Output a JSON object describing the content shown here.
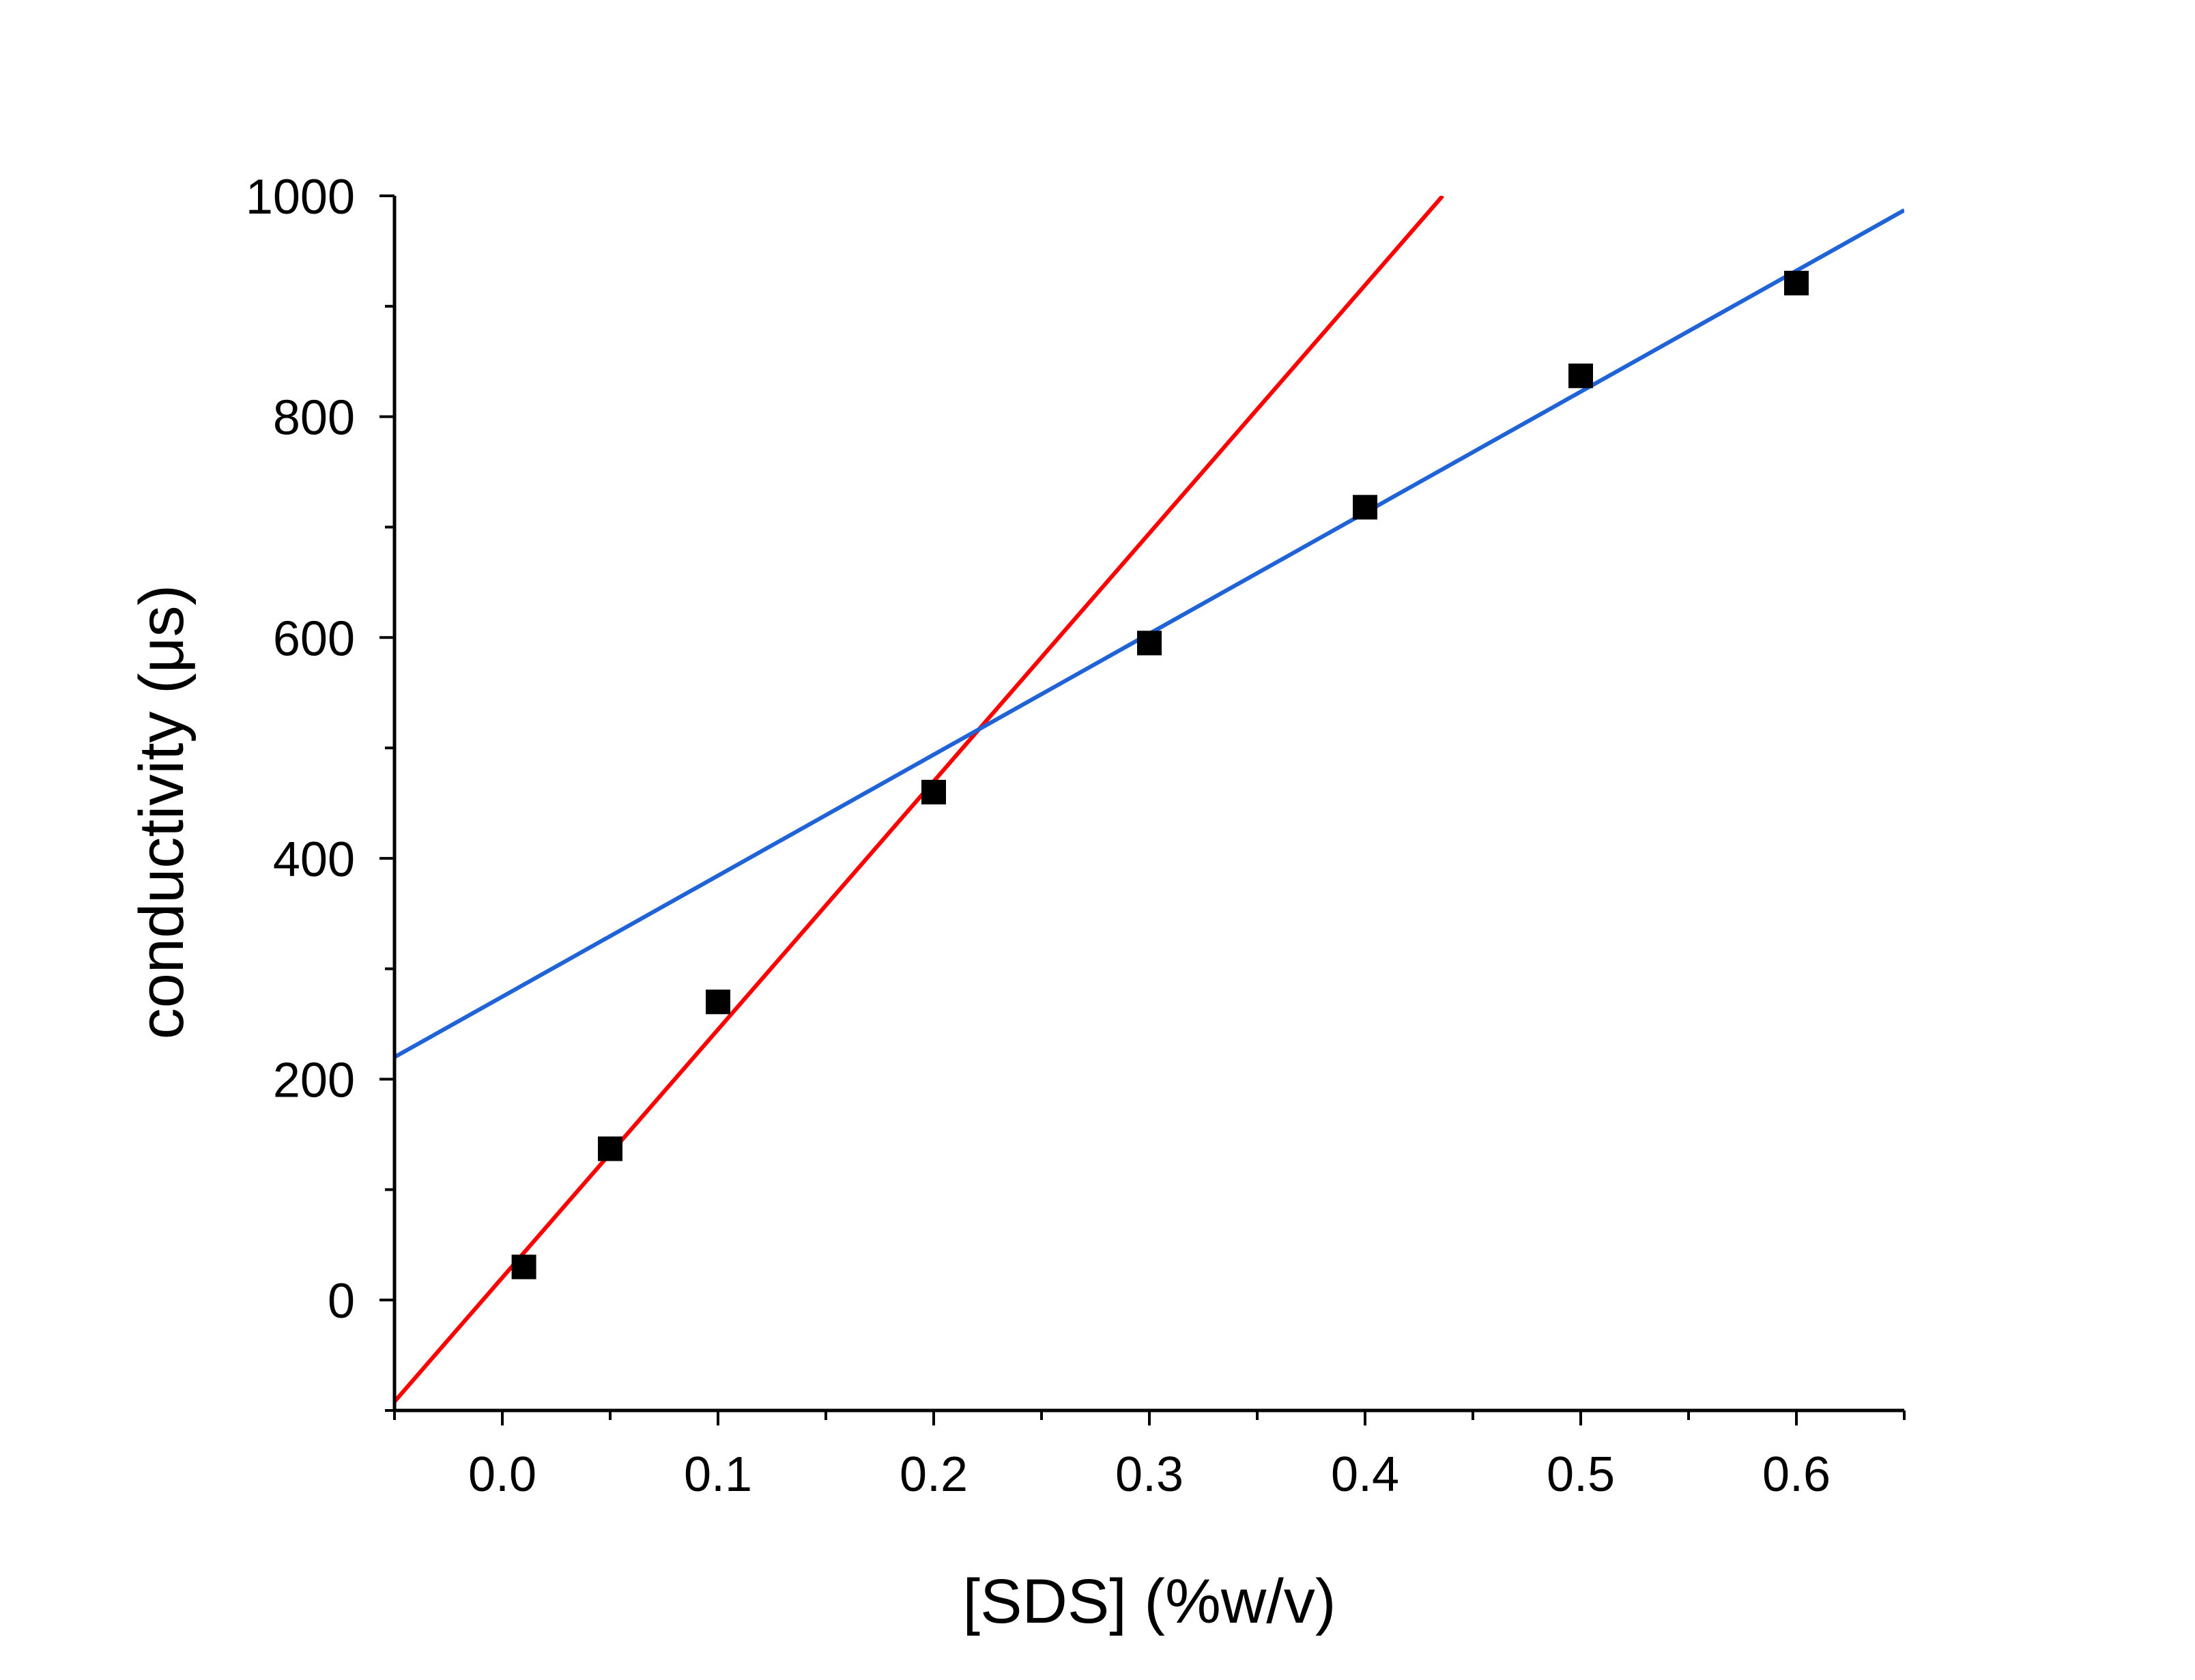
{
  "chart_data": {
    "type": "scatter",
    "title": "",
    "xlabel": "[SDS] (%w/v)",
    "ylabel": "conductivity (μs)",
    "xlim": [
      -0.05,
      0.65
    ],
    "ylim": [
      -100,
      1000
    ],
    "x_ticks": [
      "0.0",
      "0.1",
      "0.2",
      "0.3",
      "0.4",
      "0.5",
      "0.6"
    ],
    "x_tick_values": [
      0.0,
      0.1,
      0.2,
      0.3,
      0.4,
      0.5,
      0.6
    ],
    "y_ticks": [
      "0",
      "200",
      "400",
      "600",
      "800",
      "1000"
    ],
    "y_tick_values": [
      0,
      200,
      400,
      600,
      800,
      1000
    ],
    "grid": false,
    "legend": "none",
    "points": {
      "x": [
        0.01,
        0.05,
        0.1,
        0.2,
        0.3,
        0.4,
        0.5,
        0.6
      ],
      "y": [
        30,
        137,
        270,
        460,
        595,
        718,
        837,
        921
      ],
      "color": "#000000",
      "marker": "square"
    },
    "fit_lines": [
      {
        "x": [
          -0.05,
          0.436
        ],
        "y": [
          -92,
          1000
        ],
        "color": "#ff0000"
      },
      {
        "x": [
          -0.05,
          0.65
        ],
        "y": [
          220,
          987
        ],
        "color": "#1f63d6"
      }
    ]
  }
}
